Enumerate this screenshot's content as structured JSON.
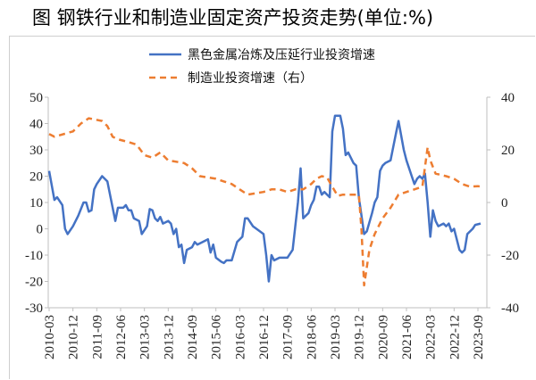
{
  "title": "图 钢铁行业和制造业固定资产投资走势(单位:%)",
  "chart_data": {
    "type": "line",
    "title": "图 钢铁行业和制造业固定资产投资走势(单位:%)",
    "legend_position": "top-center",
    "grid": false,
    "ylim_left": [
      -30,
      50
    ],
    "ylim_right": [
      -40,
      40
    ],
    "left_ticks": [
      "50",
      "40",
      "30",
      "20",
      "10",
      "0",
      "-10",
      "-20",
      "-30"
    ],
    "right_ticks": [
      "40",
      "20",
      "0",
      "-20",
      "-40"
    ],
    "x_ticks": [
      "2010-03",
      "2010-12",
      "2011-09",
      "2012-06",
      "2013-03",
      "2013-12",
      "2014-09",
      "2015-06",
      "2016-03",
      "2016-12",
      "2017-09",
      "2018-06",
      "2019-03",
      "2019-12",
      "2020-09",
      "2021-06",
      "2022-03",
      "2022-12",
      "2023-09"
    ],
    "series": [
      {
        "name": "黑色金属冶炼及压延行业投资增速",
        "axis": "left",
        "color": "#4472C4",
        "style": "solid",
        "points": [
          [
            "2010-03",
            22
          ],
          [
            "2010-05",
            11
          ],
          [
            "2010-06",
            12
          ],
          [
            "2010-08",
            9
          ],
          [
            "2010-09",
            0
          ],
          [
            "2010-10",
            -2
          ],
          [
            "2010-12",
            1
          ],
          [
            "2011-02",
            5
          ],
          [
            "2011-04",
            10
          ],
          [
            "2011-05",
            10
          ],
          [
            "2011-06",
            6.5
          ],
          [
            "2011-07",
            7
          ],
          [
            "2011-08",
            15
          ],
          [
            "2011-09",
            17
          ],
          [
            "2011-11",
            20
          ],
          [
            "2012-01",
            18
          ],
          [
            "2012-03",
            8
          ],
          [
            "2012-04",
            3
          ],
          [
            "2012-05",
            8
          ],
          [
            "2012-07",
            8
          ],
          [
            "2012-08",
            9
          ],
          [
            "2012-09",
            7
          ],
          [
            "2012-10",
            7
          ],
          [
            "2012-11",
            4
          ],
          [
            "2013-01",
            3
          ],
          [
            "2013-02",
            -2
          ],
          [
            "2013-04",
            1
          ],
          [
            "2013-05",
            7.5
          ],
          [
            "2013-06",
            7
          ],
          [
            "2013-07",
            4
          ],
          [
            "2013-08",
            3
          ],
          [
            "2013-09",
            4.5
          ],
          [
            "2013-10",
            2
          ],
          [
            "2013-12",
            3
          ],
          [
            "2014-01",
            2
          ],
          [
            "2014-02",
            -2
          ],
          [
            "2014-03",
            0
          ],
          [
            "2014-04",
            -7
          ],
          [
            "2014-05",
            -6
          ],
          [
            "2014-06",
            -13
          ],
          [
            "2014-07",
            -8
          ],
          [
            "2014-09",
            -7
          ],
          [
            "2014-10",
            -5
          ],
          [
            "2014-11",
            -6
          ],
          [
            "2015-01",
            -5
          ],
          [
            "2015-03",
            -4
          ],
          [
            "2015-04",
            -9
          ],
          [
            "2015-05",
            -6
          ],
          [
            "2015-06",
            -11
          ],
          [
            "2015-08",
            -12.5
          ],
          [
            "2015-09",
            -13
          ],
          [
            "2015-10",
            -12
          ],
          [
            "2015-12",
            -12
          ],
          [
            "2016-02",
            -5
          ],
          [
            "2016-04",
            -3
          ],
          [
            "2016-05",
            4
          ],
          [
            "2016-06",
            4
          ],
          [
            "2016-08",
            1
          ],
          [
            "2016-10",
            -0.5
          ],
          [
            "2016-12",
            -2
          ],
          [
            "2017-01",
            -10
          ],
          [
            "2017-02",
            -20
          ],
          [
            "2017-03",
            -10
          ],
          [
            "2017-04",
            -12
          ],
          [
            "2017-06",
            -11
          ],
          [
            "2017-09",
            -11
          ],
          [
            "2017-11",
            -8
          ],
          [
            "2018-01",
            10
          ],
          [
            "2018-02",
            23
          ],
          [
            "2018-03",
            4
          ],
          [
            "2018-05",
            6
          ],
          [
            "2018-06",
            9
          ],
          [
            "2018-07",
            11
          ],
          [
            "2018-08",
            16
          ],
          [
            "2018-09",
            16
          ],
          [
            "2018-10",
            13
          ],
          [
            "2018-11",
            14
          ],
          [
            "2019-01",
            12
          ],
          [
            "2019-02",
            37
          ],
          [
            "2019-03",
            43
          ],
          [
            "2019-05",
            43
          ],
          [
            "2019-06",
            38
          ],
          [
            "2019-07",
            28
          ],
          [
            "2019-08",
            29
          ],
          [
            "2019-10",
            25
          ],
          [
            "2019-11",
            24
          ],
          [
            "2019-12",
            12
          ],
          [
            "2020-02",
            -2
          ],
          [
            "2020-03",
            -1
          ],
          [
            "2020-05",
            6
          ],
          [
            "2020-06",
            10
          ],
          [
            "2020-07",
            12
          ],
          [
            "2020-08",
            22
          ],
          [
            "2020-09",
            24
          ],
          [
            "2020-10",
            25
          ],
          [
            "2020-12",
            26
          ],
          [
            "2021-02",
            36
          ],
          [
            "2021-03",
            41
          ],
          [
            "2021-05",
            30
          ],
          [
            "2021-06",
            26
          ],
          [
            "2021-08",
            20
          ],
          [
            "2021-09",
            17
          ],
          [
            "2021-10",
            19
          ],
          [
            "2021-11",
            20
          ],
          [
            "2021-12",
            19
          ],
          [
            "2022-01",
            21
          ],
          [
            "2022-02",
            10
          ],
          [
            "2022-03",
            -3
          ],
          [
            "2022-04",
            7
          ],
          [
            "2022-05",
            3
          ],
          [
            "2022-06",
            1
          ],
          [
            "2022-08",
            2
          ],
          [
            "2022-09",
            1
          ],
          [
            "2022-10",
            2
          ],
          [
            "2022-11",
            -1
          ],
          [
            "2022-12",
            0
          ],
          [
            "2023-02",
            -8
          ],
          [
            "2023-03",
            -9
          ],
          [
            "2023-04",
            -8
          ],
          [
            "2023-05",
            -2
          ],
          [
            "2023-07",
            0
          ],
          [
            "2023-08",
            1.5
          ],
          [
            "2023-10",
            2
          ]
        ]
      },
      {
        "name": "制造业投资增速（右）",
        "axis": "right",
        "color": "#ED7D31",
        "style": "dashed",
        "points": [
          [
            "2010-03",
            26
          ],
          [
            "2010-05",
            25
          ],
          [
            "2010-12",
            27
          ],
          [
            "2011-03",
            30
          ],
          [
            "2011-06",
            32
          ],
          [
            "2011-11",
            31
          ],
          [
            "2012-01",
            29
          ],
          [
            "2012-03",
            25
          ],
          [
            "2012-05",
            24
          ],
          [
            "2012-09",
            23
          ],
          [
            "2012-12",
            22
          ],
          [
            "2013-03",
            18
          ],
          [
            "2013-06",
            17
          ],
          [
            "2013-09",
            19
          ],
          [
            "2013-12",
            16
          ],
          [
            "2014-06",
            15
          ],
          [
            "2014-09",
            13
          ],
          [
            "2014-12",
            10
          ],
          [
            "2015-06",
            9
          ],
          [
            "2015-09",
            8
          ],
          [
            "2015-12",
            7
          ],
          [
            "2016-03",
            5
          ],
          [
            "2016-06",
            3
          ],
          [
            "2016-09",
            3.5
          ],
          [
            "2016-12",
            4
          ],
          [
            "2017-03",
            5
          ],
          [
            "2017-06",
            5
          ],
          [
            "2017-09",
            4
          ],
          [
            "2017-12",
            5
          ],
          [
            "2018-03",
            5
          ],
          [
            "2018-06",
            7
          ],
          [
            "2018-08",
            9
          ],
          [
            "2018-10",
            10
          ],
          [
            "2018-12",
            9.5
          ],
          [
            "2019-02",
            6
          ],
          [
            "2019-04",
            2.5
          ],
          [
            "2019-06",
            3
          ],
          [
            "2019-12",
            3
          ],
          [
            "2020-01",
            -10
          ],
          [
            "2020-02",
            -31.5
          ],
          [
            "2020-04",
            -18
          ],
          [
            "2020-06",
            -12
          ],
          [
            "2020-09",
            -6
          ],
          [
            "2020-12",
            -2
          ],
          [
            "2021-03",
            3
          ],
          [
            "2021-06",
            4
          ],
          [
            "2021-09",
            5
          ],
          [
            "2021-12",
            6
          ],
          [
            "2022-02",
            21
          ],
          [
            "2022-03",
            16
          ],
          [
            "2022-05",
            11
          ],
          [
            "2022-09",
            10
          ],
          [
            "2022-12",
            9
          ],
          [
            "2023-03",
            7
          ],
          [
            "2023-06",
            6
          ],
          [
            "2023-09",
            6.2
          ],
          [
            "2023-10",
            6
          ]
        ]
      }
    ]
  }
}
